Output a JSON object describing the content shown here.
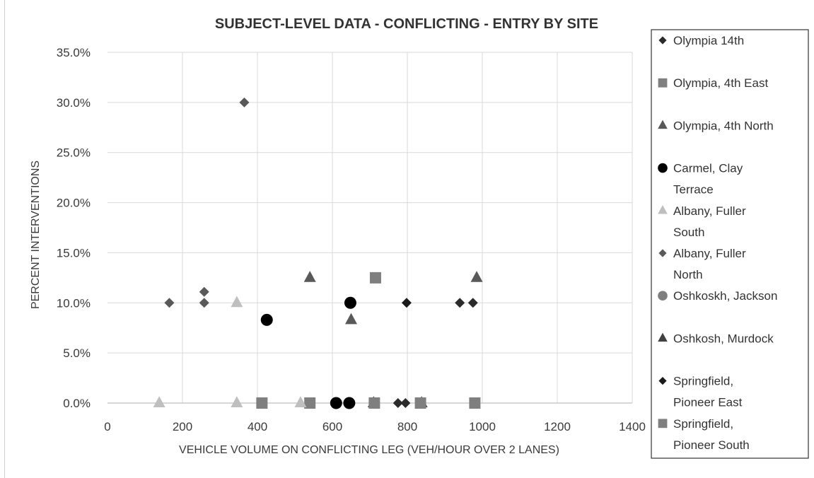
{
  "chart_data": {
    "type": "scatter",
    "title": "SUBJECT-LEVEL DATA - CONFLICTING - ENTRY BY SITE",
    "xlabel": "VEHICLE VOLUME ON CONFLICTING LEG (VEH/HOUR OVER 2 LANES)",
    "ylabel": "PERCENT INTERVENTIONS",
    "xlim": [
      0,
      1400
    ],
    "ylim": [
      0,
      0.35
    ],
    "x_ticks": [
      "0",
      "200",
      "400",
      "600",
      "800",
      "1000",
      "1200",
      "1400"
    ],
    "y_ticks": [
      "0.0%",
      "5.0%",
      "10.0%",
      "15.0%",
      "20.0%",
      "25.0%",
      "30.0%",
      "35.0%"
    ],
    "grid": true,
    "legend_position": "right",
    "series": [
      {
        "name": "Olympia 14th",
        "marker": "diamond",
        "color": "#2b2b2b",
        "points": [
          [
            775,
            0.0
          ],
          [
            795,
            0.0
          ],
          [
            940,
            0.1
          ],
          [
            975,
            0.1
          ]
        ]
      },
      {
        "name": "Olympia, 4th East",
        "marker": "square",
        "color": "#7f7f7f",
        "points": [
          [
            412,
            0.0
          ],
          [
            540,
            0.0
          ],
          [
            715,
            0.125
          ],
          [
            980,
            0.0
          ]
        ]
      },
      {
        "name": "Olympia, 4th North",
        "marker": "triangle",
        "color": "#595959",
        "points": [
          [
            540,
            0.125
          ],
          [
            650,
            0.083
          ],
          [
            985,
            0.125
          ]
        ]
      },
      {
        "name": "Carmel, Clay Terrace",
        "marker": "circle",
        "color": "#000000",
        "points": [
          [
            425,
            0.083
          ],
          [
            610,
            0.0
          ],
          [
            645,
            0.0
          ],
          [
            648,
            0.1
          ]
        ]
      },
      {
        "name": "Albany, Fuller South",
        "marker": "triangle",
        "color": "#bfbfbf",
        "points": [
          [
            138,
            0.0
          ],
          [
            345,
            0.0
          ],
          [
            345,
            0.1
          ],
          [
            515,
            0.0
          ]
        ]
      },
      {
        "name": "Albany, Fuller North",
        "marker": "diamond",
        "color": "#595959",
        "points": [
          [
            165,
            0.1
          ],
          [
            258,
            0.1
          ],
          [
            258,
            0.111
          ],
          [
            365,
            0.3
          ]
        ]
      },
      {
        "name": "Oshkoskh, Jackson",
        "marker": "circle",
        "color": "#7f7f7f",
        "points": []
      },
      {
        "name": "Oshkosh, Murdock",
        "marker": "triangle",
        "color": "#404040",
        "points": [
          [
            710,
            0.0
          ],
          [
            838,
            0.0
          ]
        ]
      },
      {
        "name": "Springfield, Pioneer East",
        "marker": "diamond",
        "color": "#1a1a1a",
        "points": [
          [
            798,
            0.1
          ]
        ]
      },
      {
        "name": "Springfield, Pioneer South",
        "marker": "square",
        "color": "#7f7f7f",
        "points": [
          [
            712,
            0.0
          ],
          [
            835,
            0.0
          ]
        ]
      }
    ]
  }
}
